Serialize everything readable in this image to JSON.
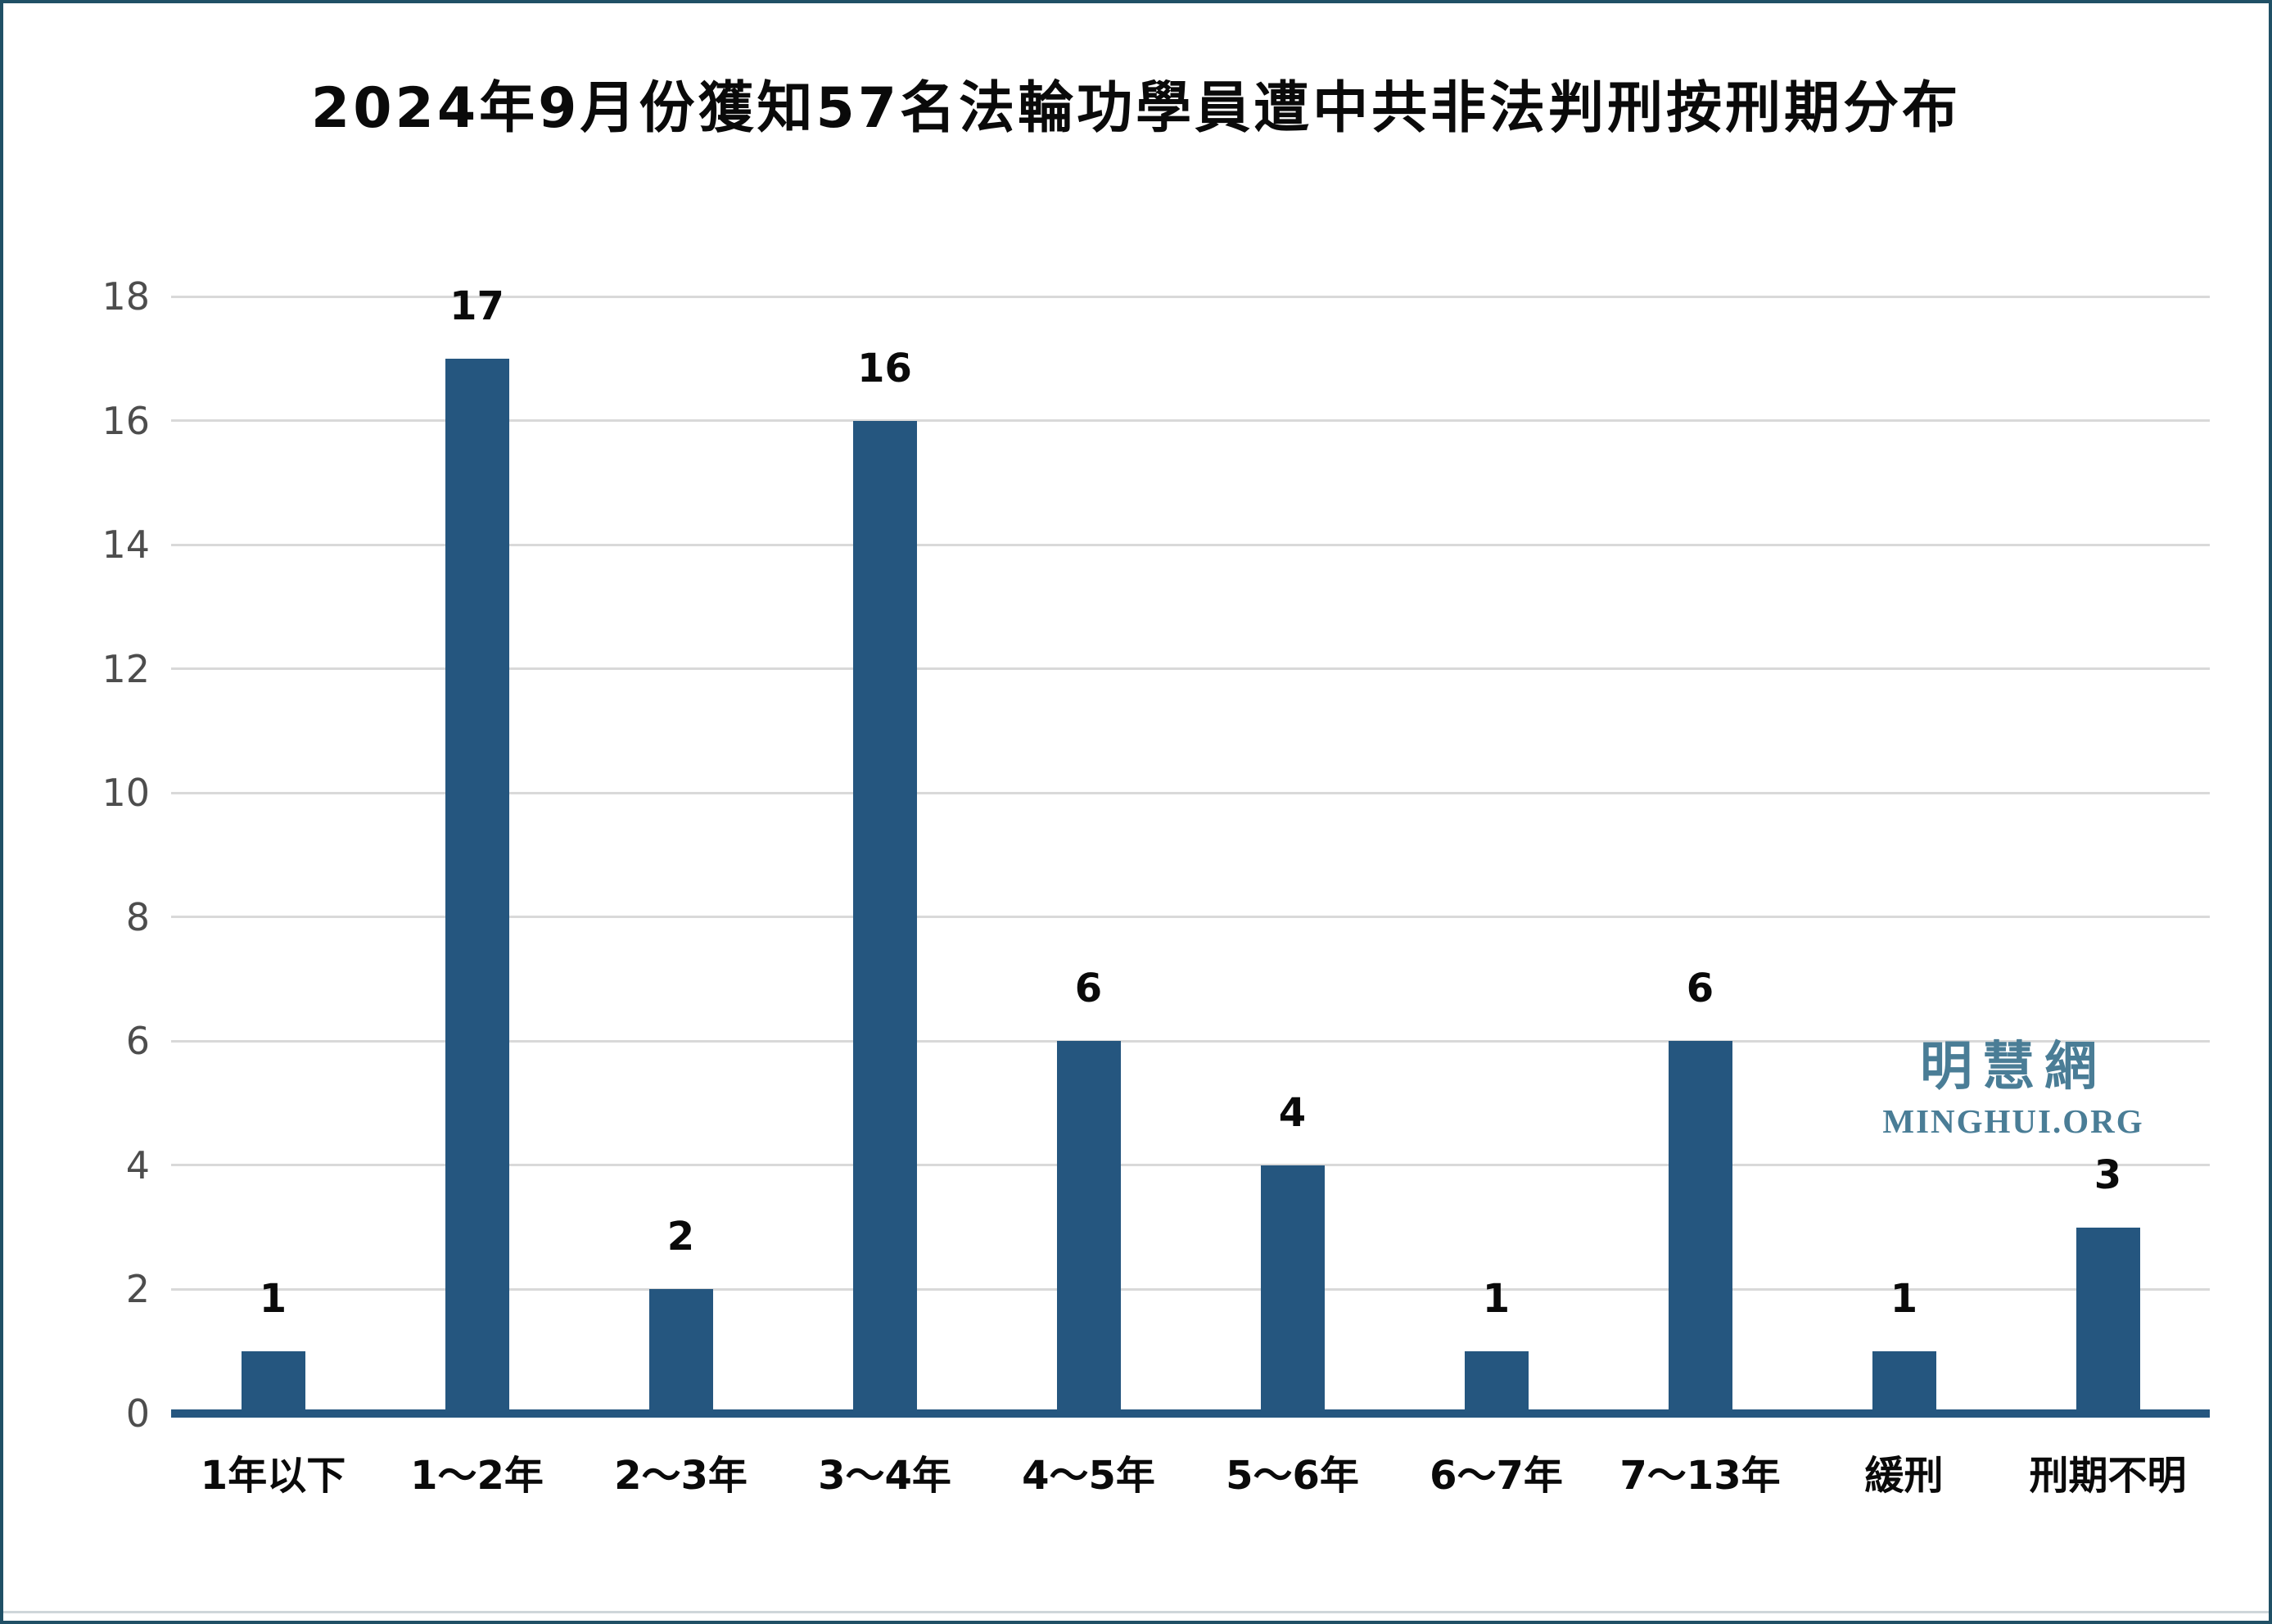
{
  "title": "2024年9月份獲知57名法輪功學員遭中共非法判刑按刑期分布",
  "watermark": {
    "site_name_cjk": "明慧網",
    "site_name_latin": "MINGHUI.ORG",
    "color": "#4A7D96"
  },
  "colors": {
    "bar": "#25567F",
    "axis_line": "#25567F",
    "gridline": "#D9D9D9",
    "y_tick_text": "#4D4D4D",
    "label_text": "#0A0A0A",
    "frame_border": "#205066"
  },
  "chart_data": {
    "type": "bar",
    "title": "2024年9月份獲知57名法輪功學員遭中共非法判刑按刑期分布",
    "categories": [
      "1年以下",
      "1～2年",
      "2～3年",
      "3～4年",
      "4～5年",
      "5～6年",
      "6～7年",
      "7～13年",
      "緩刑",
      "刑期不明"
    ],
    "values": [
      1,
      17,
      2,
      16,
      6,
      4,
      1,
      6,
      1,
      3
    ],
    "total": 57,
    "xlabel": "",
    "ylabel": "",
    "ylim": [
      0,
      18
    ],
    "yticks": [
      0,
      2,
      4,
      6,
      8,
      10,
      12,
      14,
      16,
      18
    ],
    "grid": true,
    "value_labels": true,
    "legend": false
  }
}
